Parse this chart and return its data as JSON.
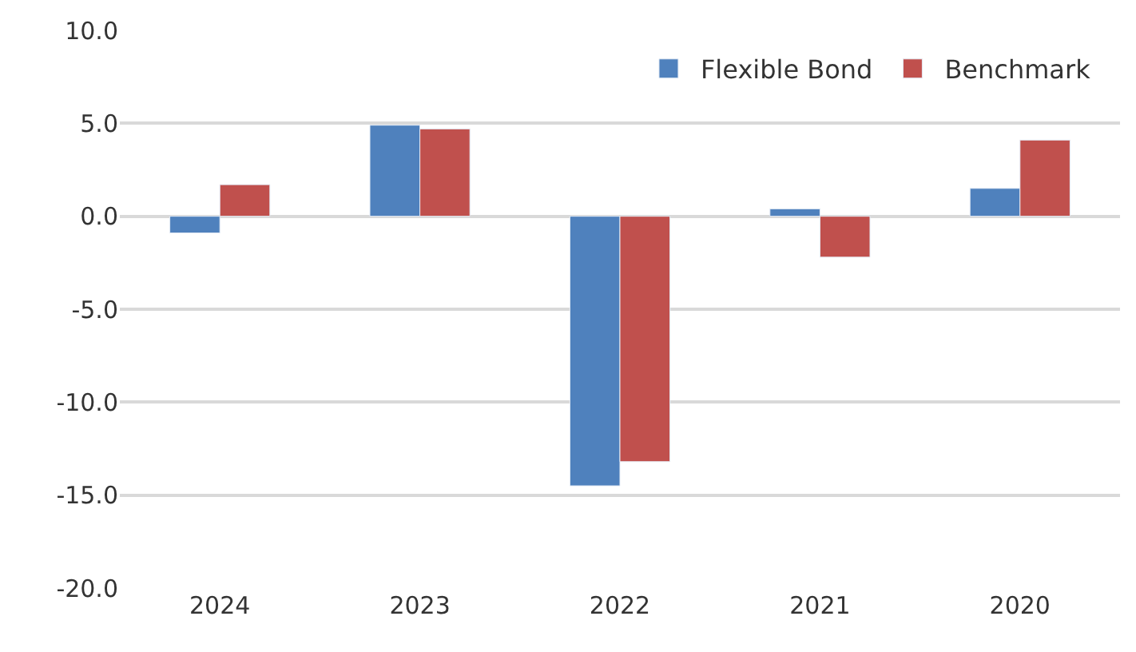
{
  "chart_data": {
    "type": "bar",
    "categories": [
      "2024",
      "2023",
      "2022",
      "2021",
      "2020"
    ],
    "series": [
      {
        "name": "Flexible Bond",
        "color": "#4f81bd",
        "values": [
          -0.9,
          4.9,
          -14.5,
          0.4,
          1.5
        ]
      },
      {
        "name": "Benchmark",
        "color": "#c0504d",
        "values": [
          1.7,
          4.7,
          -13.2,
          -2.2,
          4.1
        ]
      }
    ],
    "ylim": [
      -20,
      10
    ],
    "yticks": [
      {
        "value": -20,
        "label": "-20.0"
      },
      {
        "value": -15,
        "label": "-15.0"
      },
      {
        "value": -10,
        "label": "-10.0"
      },
      {
        "value": -5,
        "label": "-5.0"
      },
      {
        "value": 0,
        "label": "0.0"
      },
      {
        "value": 5,
        "label": "5.0"
      },
      {
        "value": 10,
        "label": "10.0"
      }
    ],
    "grid": "y",
    "legend": "top right"
  }
}
